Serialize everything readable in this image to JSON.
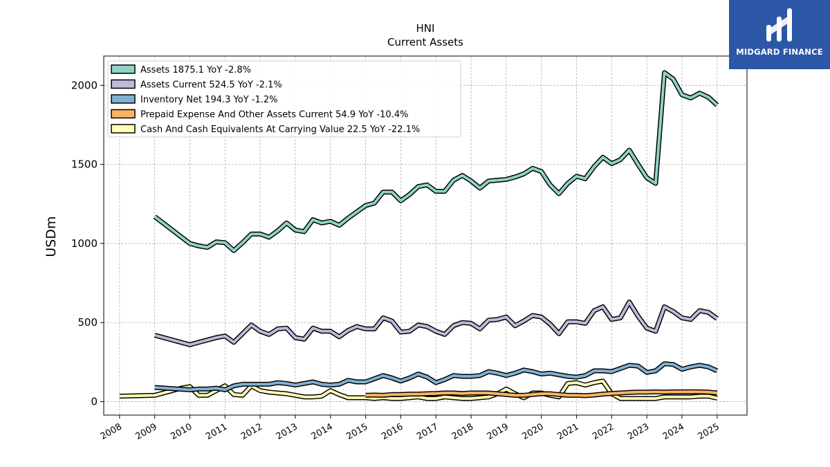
{
  "chart_data": {
    "type": "line",
    "title": "HNI",
    "subtitle": "Current  Assets",
    "ylabel": "USDm",
    "xlabel": "",
    "xlim": [
      2007.55,
      2025.85
    ],
    "ylim": [
      -85,
      2185
    ],
    "yticks": [
      0,
      500,
      1000,
      1500,
      2000
    ],
    "xticks": [
      2008,
      2009,
      2010,
      2011,
      2012,
      2013,
      2014,
      2015,
      2016,
      2017,
      2018,
      2019,
      2020,
      2021,
      2022,
      2023,
      2024,
      2025
    ],
    "grid": true,
    "legend_position": "top-left",
    "series": [
      {
        "name": "Assets  1875.1 YoY -2.8%",
        "color": "#8dd3c7",
        "x": [
          2009.0,
          2010.0,
          2010.25,
          2010.5,
          2010.75,
          2011.0,
          2011.25,
          2011.5,
          2011.75,
          2012.0,
          2012.25,
          2012.5,
          2012.75,
          2013.0,
          2013.25,
          2013.5,
          2013.75,
          2014.0,
          2014.25,
          2014.5,
          2014.75,
          2015.0,
          2015.25,
          2015.5,
          2015.75,
          2016.0,
          2016.25,
          2016.5,
          2016.75,
          2017.0,
          2017.25,
          2017.5,
          2017.75,
          2018.0,
          2018.25,
          2018.5,
          2018.75,
          2019.0,
          2019.25,
          2019.5,
          2019.75,
          2020.0,
          2020.25,
          2020.5,
          2020.75,
          2021.0,
          2021.25,
          2021.5,
          2021.75,
          2022.0,
          2022.25,
          2022.5,
          2022.75,
          2023.0,
          2023.25,
          2023.5,
          2023.75,
          2024.0,
          2024.25,
          2024.5,
          2024.75,
          2025.0
        ],
        "y": [
          1170,
          1000,
          985,
          975,
          1010,
          1005,
          955,
          1005,
          1060,
          1060,
          1040,
          1080,
          1130,
          1085,
          1075,
          1150,
          1130,
          1140,
          1115,
          1160,
          1200,
          1240,
          1255,
          1325,
          1325,
          1270,
          1310,
          1360,
          1370,
          1330,
          1330,
          1400,
          1430,
          1395,
          1350,
          1395,
          1400,
          1405,
          1420,
          1440,
          1475,
          1455,
          1370,
          1315,
          1380,
          1425,
          1410,
          1485,
          1545,
          1505,
          1530,
          1590,
          1500,
          1415,
          1380,
          2080,
          2040,
          1940,
          1920,
          1950,
          1925,
          1875
        ]
      },
      {
        "name": "Assets Current  524.5 YoY -2.1%",
        "color": "#bebada",
        "x": [
          2009.0,
          2010.0,
          2010.25,
          2010.5,
          2010.75,
          2011.0,
          2011.25,
          2011.5,
          2011.75,
          2012.0,
          2012.25,
          2012.5,
          2012.75,
          2013.0,
          2013.25,
          2013.5,
          2013.75,
          2014.0,
          2014.25,
          2014.5,
          2014.75,
          2015.0,
          2015.25,
          2015.5,
          2015.75,
          2016.0,
          2016.25,
          2016.5,
          2016.75,
          2017.0,
          2017.25,
          2017.5,
          2017.75,
          2018.0,
          2018.25,
          2018.5,
          2018.75,
          2019.0,
          2019.25,
          2019.5,
          2019.75,
          2020.0,
          2020.25,
          2020.5,
          2020.75,
          2021.0,
          2021.25,
          2021.5,
          2021.75,
          2022.0,
          2022.25,
          2022.5,
          2022.75,
          2023.0,
          2023.25,
          2023.5,
          2023.75,
          2024.0,
          2024.25,
          2024.5,
          2024.75,
          2025.0
        ],
        "y": [
          420,
          360,
          375,
          390,
          405,
          415,
          375,
          430,
          485,
          445,
          425,
          460,
          465,
          405,
          395,
          465,
          445,
          445,
          410,
          450,
          475,
          460,
          460,
          530,
          510,
          440,
          445,
          485,
          475,
          445,
          425,
          480,
          500,
          495,
          460,
          515,
          520,
          535,
          480,
          510,
          545,
          535,
          490,
          430,
          505,
          505,
          495,
          575,
          600,
          520,
          530,
          630,
          540,
          465,
          445,
          600,
          570,
          530,
          520,
          575,
          565,
          525
        ]
      },
      {
        "name": "Inventory Net  194.3 YoY -1.2%",
        "color": "#80b1d3",
        "x": [
          2009.0,
          2010.0,
          2010.25,
          2010.5,
          2010.75,
          2011.0,
          2011.25,
          2011.5,
          2011.75,
          2012.0,
          2012.25,
          2012.5,
          2012.75,
          2013.0,
          2013.25,
          2013.5,
          2013.75,
          2014.0,
          2014.25,
          2014.5,
          2014.75,
          2015.0,
          2015.25,
          2015.5,
          2015.75,
          2016.0,
          2016.25,
          2016.5,
          2016.75,
          2017.0,
          2017.25,
          2017.5,
          2017.75,
          2018.0,
          2018.25,
          2018.5,
          2018.75,
          2019.0,
          2019.25,
          2019.5,
          2019.75,
          2020.0,
          2020.25,
          2020.5,
          2020.75,
          2021.0,
          2021.25,
          2021.5,
          2021.75,
          2022.0,
          2022.25,
          2022.5,
          2022.75,
          2023.0,
          2023.25,
          2023.5,
          2023.75,
          2024.0,
          2024.25,
          2024.5,
          2024.75,
          2025.0
        ],
        "y": [
          90,
          75,
          80,
          80,
          85,
          75,
          100,
          110,
          110,
          110,
          110,
          120,
          115,
          105,
          115,
          125,
          110,
          105,
          110,
          135,
          125,
          125,
          145,
          165,
          150,
          130,
          150,
          175,
          155,
          120,
          140,
          165,
          160,
          160,
          165,
          190,
          180,
          165,
          180,
          200,
          190,
          175,
          180,
          170,
          160,
          155,
          165,
          195,
          195,
          190,
          210,
          230,
          225,
          185,
          195,
          240,
          235,
          205,
          220,
          230,
          220,
          195
        ]
      },
      {
        "name": "Prepaid Expense And Other Assets Current  54.9 YoY -10.4%",
        "color": "#fdb462",
        "x": [
          2015.0,
          2015.25,
          2015.5,
          2015.75,
          2016.0,
          2016.25,
          2016.5,
          2016.75,
          2017.0,
          2017.25,
          2017.5,
          2017.75,
          2018.0,
          2018.25,
          2018.5,
          2018.75,
          2019.0,
          2019.25,
          2019.5,
          2019.75,
          2020.0,
          2020.25,
          2020.5,
          2020.75,
          2021.0,
          2021.25,
          2021.5,
          2021.75,
          2022.0,
          2022.25,
          2022.5,
          2022.75,
          2023.0,
          2023.25,
          2023.5,
          2023.75,
          2024.0,
          2024.25,
          2024.5,
          2024.75,
          2025.0
        ],
        "y": [
          40,
          42,
          40,
          45,
          45,
          48,
          48,
          50,
          52,
          55,
          55,
          52,
          55,
          55,
          55,
          50,
          45,
          40,
          40,
          45,
          50,
          50,
          45,
          40,
          40,
          38,
          42,
          48,
          52,
          55,
          58,
          60,
          60,
          62,
          60,
          62,
          62,
          63,
          62,
          60,
          55
        ]
      },
      {
        "name": "Cash And Cash Equivalents At Carrying Value  22.5 YoY -22.1%",
        "color": "#ffffb3",
        "x": [
          2008.0,
          2009.0,
          2009.25,
          2009.5,
          2009.75,
          2010.0,
          2010.25,
          2010.5,
          2010.75,
          2011.0,
          2011.25,
          2011.5,
          2011.75,
          2012.0,
          2012.25,
          2012.5,
          2012.75,
          2013.0,
          2013.25,
          2013.5,
          2013.75,
          2014.0,
          2014.25,
          2014.5,
          2014.75,
          2015.0,
          2015.25,
          2015.5,
          2015.75,
          2016.0,
          2016.25,
          2016.5,
          2016.75,
          2017.0,
          2017.25,
          2017.5,
          2017.75,
          2018.0,
          2018.25,
          2018.5,
          2018.75,
          2019.0,
          2019.25,
          2019.5,
          2019.75,
          2020.0,
          2020.25,
          2020.5,
          2020.75,
          2021.0,
          2021.25,
          2021.5,
          2021.75,
          2022.0,
          2022.25,
          2022.5,
          2022.75,
          2023.0,
          2023.25,
          2023.5,
          2023.75,
          2024.0,
          2024.25,
          2024.5,
          2024.75,
          2025.0
        ],
        "y": [
          35,
          40,
          55,
          70,
          85,
          95,
          40,
          40,
          70,
          100,
          45,
          40,
          100,
          70,
          60,
          55,
          50,
          40,
          30,
          30,
          35,
          70,
          45,
          25,
          25,
          25,
          20,
          25,
          20,
          20,
          25,
          30,
          20,
          20,
          30,
          25,
          20,
          20,
          25,
          30,
          50,
          80,
          50,
          25,
          55,
          55,
          40,
          30,
          115,
          120,
          105,
          120,
          130,
          50,
          20,
          20,
          20,
          20,
          20,
          30,
          30,
          30,
          30,
          35,
          35,
          22
        ]
      }
    ]
  },
  "logo": {
    "text": "MIDGARD FINANCE"
  }
}
